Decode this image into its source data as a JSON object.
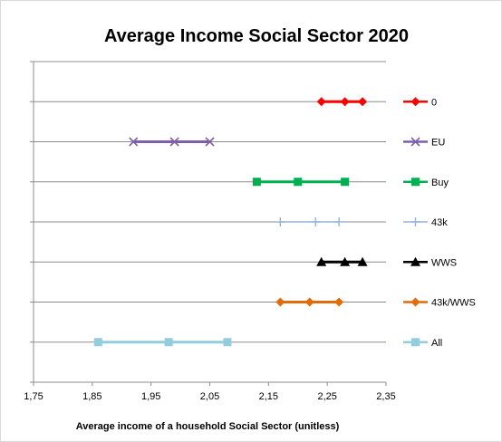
{
  "chart_data": {
    "type": "scatter",
    "title": "Average Income Social Sector 2020",
    "xlabel": "Average income  of a household Social Sector (unitless)",
    "ylabel": "",
    "xlim": [
      1.75,
      2.35
    ],
    "x_ticks": [
      "1,75",
      "1,85",
      "1,95",
      "2,05",
      "2,15",
      "2,25",
      "2,35"
    ],
    "grid": "horizontal",
    "legend_position": "right",
    "series": [
      {
        "name": "0",
        "color": "#ff0000",
        "marker": "diamond",
        "x": [
          2.24,
          2.28,
          2.31
        ]
      },
      {
        "name": "EU",
        "color": "#7f5fa8",
        "marker": "x",
        "x": [
          1.92,
          1.99,
          2.05
        ]
      },
      {
        "name": "Buy",
        "color": "#00b050",
        "marker": "square",
        "x": [
          2.13,
          2.2,
          2.28
        ]
      },
      {
        "name": "43k",
        "color": "#95b3d7",
        "marker": "plus",
        "x": [
          2.17,
          2.23,
          2.27
        ]
      },
      {
        "name": "WWS",
        "color": "#000000",
        "marker": "triangle",
        "x": [
          2.24,
          2.28,
          2.31
        ]
      },
      {
        "name": "43k/WWS",
        "color": "#e36c09",
        "marker": "diamond",
        "x": [
          2.17,
          2.22,
          2.27
        ]
      },
      {
        "name": "All",
        "color": "#93cddd",
        "marker": "square",
        "x": [
          1.86,
          1.98,
          2.08
        ]
      }
    ]
  }
}
